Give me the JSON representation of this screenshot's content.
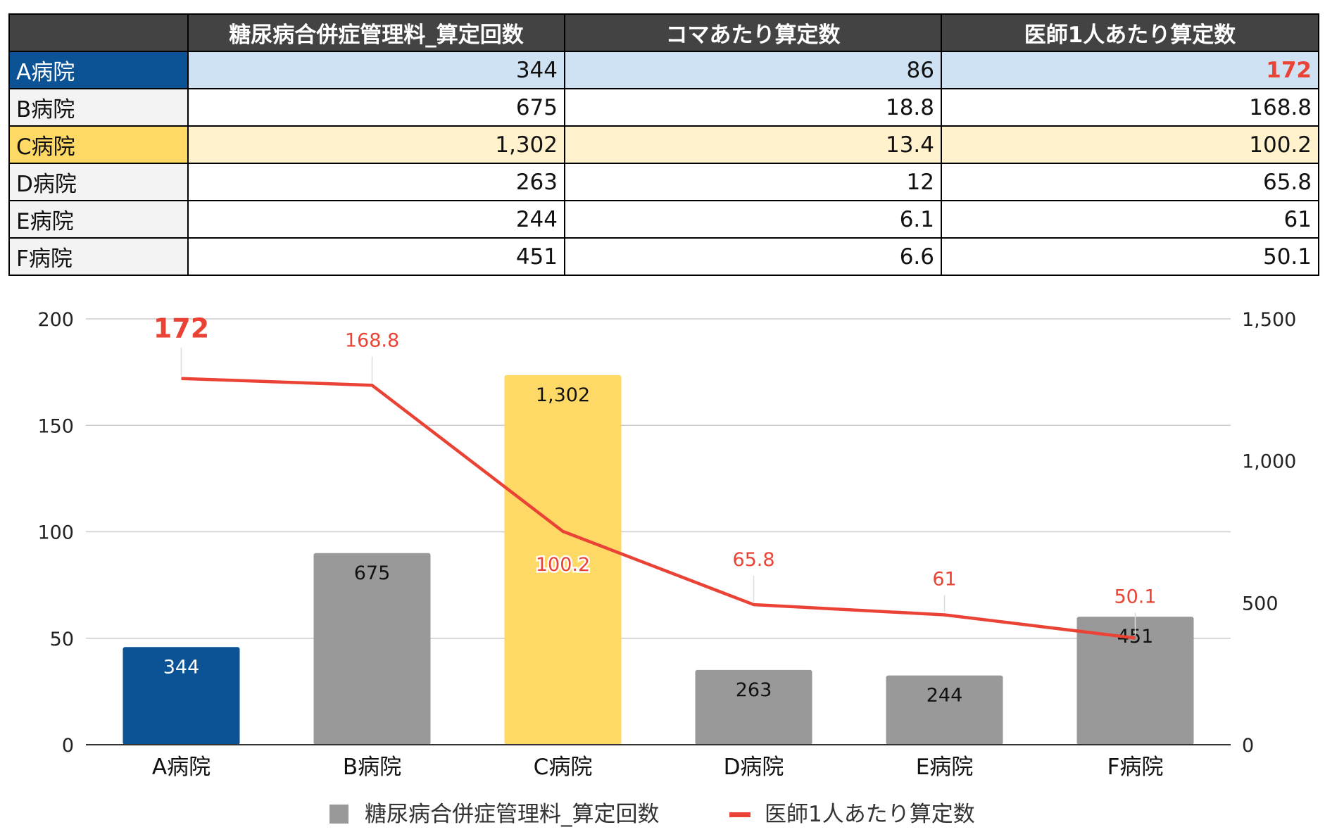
{
  "table": {
    "headers": [
      "",
      "糖尿病合併症管理料_算定回数",
      "コマあたり算定数",
      "医師1人あたり算定数"
    ],
    "rows": [
      {
        "label": "A病院",
        "cells": [
          "344",
          "86",
          "172"
        ]
      },
      {
        "label": "B病院",
        "cells": [
          "675",
          "18.8",
          "168.8"
        ]
      },
      {
        "label": "C病院",
        "cells": [
          "1,302",
          "13.4",
          "100.2"
        ]
      },
      {
        "label": "D病院",
        "cells": [
          "263",
          "12",
          "65.8"
        ]
      },
      {
        "label": "E病院",
        "cells": [
          "244",
          "6.1",
          "61"
        ]
      },
      {
        "label": "F病院",
        "cells": [
          "451",
          "6.6",
          "50.1"
        ]
      }
    ]
  },
  "colors": {
    "header_bg": "#434343",
    "highlight_a": "#0b5394",
    "highlight_a_light": "#cfe2f3",
    "highlight_c": "#ffd966",
    "highlight_c_light": "#fff2cc",
    "bar_default": "#999999",
    "line": "#ea4335"
  },
  "chart_data": {
    "type": "bar+line",
    "categories": [
      "A病院",
      "B病院",
      "C病院",
      "D病院",
      "E病院",
      "F病院"
    ],
    "series": [
      {
        "name": "糖尿病合併症管理料_算定回数",
        "type": "bar",
        "axis": "right",
        "values": [
          344,
          675,
          1302,
          263,
          244,
          451
        ],
        "labels": [
          "344",
          "675",
          "1,302",
          "263",
          "244",
          "451"
        ],
        "bar_colors": [
          "#0b5394",
          "#999999",
          "#ffd966",
          "#999999",
          "#999999",
          "#999999"
        ]
      },
      {
        "name": "医師1人あたり算定数",
        "type": "line",
        "axis": "left",
        "values": [
          172,
          168.8,
          100.2,
          65.8,
          61,
          50.1
        ],
        "labels": [
          "172",
          "168.8",
          "100.2",
          "65.8",
          "61",
          "50.1"
        ]
      }
    ],
    "left_axis": {
      "min": 0,
      "max": 200,
      "ticks": [
        "0",
        "50",
        "100",
        "150",
        "200"
      ],
      "tick_values": [
        0,
        50,
        100,
        150,
        200
      ]
    },
    "right_axis": {
      "min": 0,
      "max": 1500,
      "ticks": [
        "0",
        "500",
        "1,000",
        "1,500"
      ],
      "tick_values": [
        0,
        500,
        1000,
        1500
      ]
    },
    "grid": true,
    "legend_position": "bottom"
  }
}
